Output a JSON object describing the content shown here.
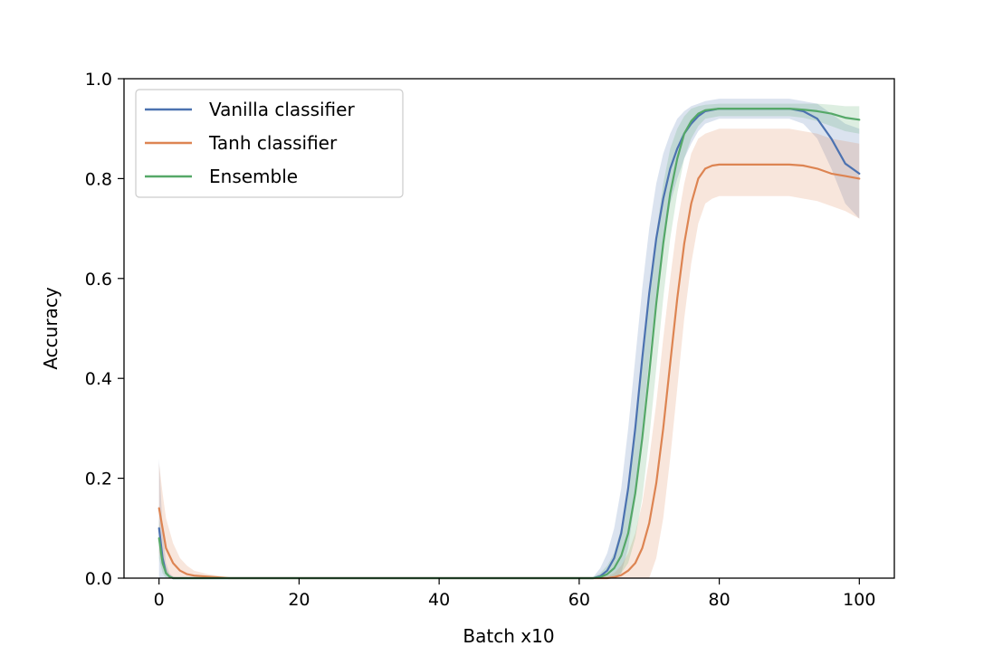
{
  "chart_data": {
    "type": "line",
    "title": "",
    "xlabel": "Batch x10",
    "ylabel": "Accuracy",
    "xlim": [
      -5,
      105
    ],
    "ylim": [
      0.0,
      1.0
    ],
    "x_ticks": [
      0,
      20,
      40,
      60,
      80,
      100
    ],
    "x_tick_labels": [
      "0",
      "20",
      "40",
      "60",
      "80",
      "100"
    ],
    "y_ticks": [
      0.0,
      0.2,
      0.4,
      0.6,
      0.8,
      1.0
    ],
    "y_tick_labels": [
      "0.0",
      "0.2",
      "0.4",
      "0.6",
      "0.8",
      "1.0"
    ],
    "grid": false,
    "legend_position": "top-left",
    "series": [
      {
        "name": "Vanilla classifier",
        "color": "#4c72b0",
        "x": [
          0,
          0.5,
          1,
          1.5,
          2,
          3,
          5,
          10,
          20,
          40,
          60,
          62,
          63,
          64,
          65,
          66,
          67,
          68,
          69,
          70,
          71,
          72,
          73,
          74,
          75,
          76,
          77,
          78,
          80,
          85,
          90,
          92,
          94,
          96,
          98,
          100
        ],
        "y": [
          0.1,
          0.04,
          0.01,
          0.003,
          0.0,
          0.0,
          0.0,
          0.0,
          0.0,
          0.0,
          0.0,
          0.0,
          0.004,
          0.015,
          0.04,
          0.09,
          0.18,
          0.3,
          0.44,
          0.57,
          0.68,
          0.76,
          0.82,
          0.86,
          0.89,
          0.91,
          0.925,
          0.935,
          0.94,
          0.94,
          0.94,
          0.935,
          0.92,
          0.88,
          0.83,
          0.81
        ],
        "band_upper": [
          0.24,
          0.1,
          0.03,
          0.01,
          0.003,
          0.0,
          0.0,
          0.0,
          0.0,
          0.0,
          0.0,
          0.002,
          0.02,
          0.05,
          0.1,
          0.18,
          0.3,
          0.44,
          0.58,
          0.7,
          0.79,
          0.85,
          0.89,
          0.92,
          0.935,
          0.945,
          0.95,
          0.955,
          0.96,
          0.96,
          0.96,
          0.955,
          0.95,
          0.93,
          0.91,
          0.9
        ],
        "band_lower": [
          0.0,
          0.0,
          0.0,
          0.0,
          0.0,
          0.0,
          0.0,
          0.0,
          0.0,
          0.0,
          0.0,
          0.0,
          0.0,
          0.0,
          0.0,
          0.01,
          0.06,
          0.16,
          0.3,
          0.44,
          0.57,
          0.67,
          0.75,
          0.8,
          0.84,
          0.87,
          0.895,
          0.91,
          0.92,
          0.92,
          0.92,
          0.91,
          0.88,
          0.82,
          0.75,
          0.72
        ]
      },
      {
        "name": "Tanh classifier",
        "color": "#dd8452",
        "x": [
          0,
          0.5,
          1,
          2,
          3,
          4,
          5,
          7,
          10,
          20,
          40,
          60,
          64,
          65,
          66,
          67,
          68,
          69,
          70,
          71,
          72,
          73,
          74,
          75,
          76,
          77,
          78,
          79,
          80,
          85,
          90,
          92,
          94,
          96,
          98,
          100
        ],
        "y": [
          0.14,
          0.1,
          0.06,
          0.03,
          0.015,
          0.008,
          0.005,
          0.003,
          0.0,
          0.0,
          0.0,
          0.0,
          0.0,
          0.002,
          0.006,
          0.015,
          0.03,
          0.06,
          0.11,
          0.19,
          0.3,
          0.43,
          0.56,
          0.67,
          0.75,
          0.8,
          0.82,
          0.826,
          0.828,
          0.828,
          0.828,
          0.826,
          0.82,
          0.81,
          0.805,
          0.8
        ],
        "band_upper": [
          0.23,
          0.17,
          0.12,
          0.07,
          0.04,
          0.025,
          0.015,
          0.008,
          0.002,
          0.0,
          0.0,
          0.0,
          0.004,
          0.01,
          0.025,
          0.05,
          0.09,
          0.15,
          0.24,
          0.35,
          0.48,
          0.6,
          0.71,
          0.79,
          0.85,
          0.88,
          0.89,
          0.895,
          0.9,
          0.9,
          0.9,
          0.895,
          0.89,
          0.88,
          0.875,
          0.87
        ],
        "band_lower": [
          0.05,
          0.03,
          0.01,
          0.0,
          0.0,
          0.0,
          0.0,
          0.0,
          0.0,
          0.0,
          0.0,
          0.0,
          0.0,
          0.0,
          0.0,
          0.0,
          0.0,
          0.0,
          0.0,
          0.04,
          0.12,
          0.24,
          0.38,
          0.52,
          0.63,
          0.71,
          0.75,
          0.76,
          0.765,
          0.765,
          0.765,
          0.76,
          0.755,
          0.745,
          0.735,
          0.72
        ]
      },
      {
        "name": "Ensemble",
        "color": "#55a868",
        "x": [
          0,
          0.5,
          1,
          1.5,
          2,
          3,
          5,
          10,
          20,
          40,
          60,
          62,
          63,
          64,
          65,
          66,
          67,
          68,
          69,
          70,
          71,
          72,
          73,
          74,
          75,
          76,
          77,
          78,
          80,
          85,
          90,
          92,
          94,
          96,
          98,
          100
        ],
        "y": [
          0.08,
          0.03,
          0.01,
          0.003,
          0.0,
          0.0,
          0.0,
          0.0,
          0.0,
          0.0,
          0.0,
          0.0,
          0.002,
          0.008,
          0.02,
          0.045,
          0.09,
          0.17,
          0.28,
          0.41,
          0.55,
          0.67,
          0.77,
          0.84,
          0.89,
          0.915,
          0.93,
          0.937,
          0.94,
          0.94,
          0.94,
          0.938,
          0.935,
          0.93,
          0.922,
          0.918
        ],
        "band_upper": [
          0.12,
          0.05,
          0.02,
          0.006,
          0.002,
          0.0,
          0.0,
          0.0,
          0.0,
          0.0,
          0.0,
          0.002,
          0.01,
          0.025,
          0.05,
          0.1,
          0.18,
          0.29,
          0.42,
          0.56,
          0.69,
          0.79,
          0.86,
          0.9,
          0.925,
          0.94,
          0.945,
          0.948,
          0.95,
          0.95,
          0.95,
          0.95,
          0.95,
          0.948,
          0.945,
          0.945
        ],
        "band_lower": [
          0.04,
          0.01,
          0.0,
          0.0,
          0.0,
          0.0,
          0.0,
          0.0,
          0.0,
          0.0,
          0.0,
          0.0,
          0.0,
          0.0,
          0.0,
          0.01,
          0.03,
          0.08,
          0.16,
          0.28,
          0.42,
          0.56,
          0.68,
          0.77,
          0.84,
          0.88,
          0.905,
          0.92,
          0.925,
          0.925,
          0.925,
          0.922,
          0.915,
          0.905,
          0.895,
          0.89
        ]
      }
    ]
  }
}
